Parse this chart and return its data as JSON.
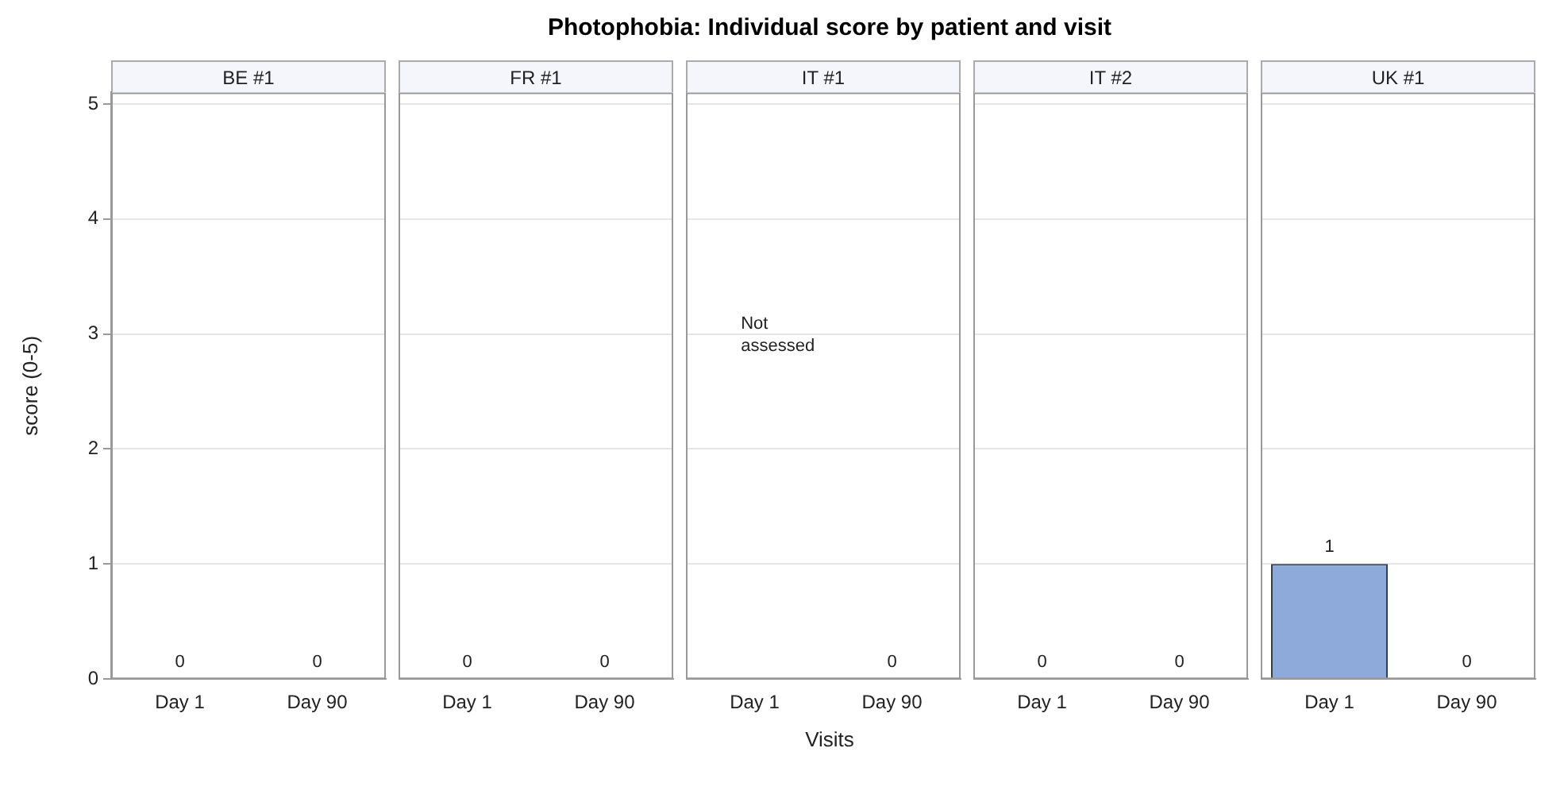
{
  "chart_data": [
    {
      "type": "bar",
      "subtitle": "BE #1",
      "ylabel": "score (0-5)",
      "categories": [
        "Day 1",
        "Day 90"
      ],
      "values": [
        0,
        0
      ],
      "color": "#8eaadb",
      "ylim": [
        0,
        5.1
      ],
      "yticks": [
        0,
        1,
        2,
        3,
        4,
        5
      ],
      "grid": "y",
      "data_labels": true
    },
    {
      "type": "bar",
      "subtitle": "FR #1",
      "categories": [
        "Day 1",
        "Day 90"
      ],
      "values": [
        0,
        0
      ],
      "color": "#8eaadb",
      "ylim": [
        0,
        5.1
      ],
      "yticks": [
        0,
        1,
        2,
        3,
        4,
        5
      ],
      "grid": "y",
      "data_labels": true,
      "tick_labels": "x"
    },
    {
      "type": "bar",
      "title": "Photophobia: Individual score by patient and visit",
      "subtitle": "IT #1",
      "xlabel": "Visits",
      "categories": [
        "Day 1",
        "Day 90"
      ],
      "values": [
        null,
        0
      ],
      "color": "#8eaadb",
      "ylim": [
        0,
        5.1
      ],
      "yticks": [
        0,
        1,
        2,
        3,
        4,
        5
      ],
      "grid": "y",
      "data_labels": true,
      "tick_labels": "x",
      "annotations": [
        "Not assessed"
      ]
    },
    {
      "type": "bar",
      "subtitle": "IT #2",
      "categories": [
        "Day 1",
        "Day 90"
      ],
      "values": [
        0,
        0
      ],
      "color": "#8eaadb",
      "ylim": [
        0,
        5.1
      ],
      "yticks": [
        0,
        1,
        2,
        3,
        4,
        5
      ],
      "grid": "y",
      "data_labels": true,
      "tick_labels": "x"
    },
    {
      "type": "bar",
      "subtitle": "UK #1",
      "categories": [
        "Day 1",
        "Day 90"
      ],
      "values": [
        1,
        0
      ],
      "color": "#8eaadb",
      "ylim": [
        0,
        5.1
      ],
      "yticks": [
        0,
        1,
        2,
        3,
        4,
        5
      ],
      "grid": "y",
      "data_labels": true,
      "tick_labels": "x"
    }
  ]
}
